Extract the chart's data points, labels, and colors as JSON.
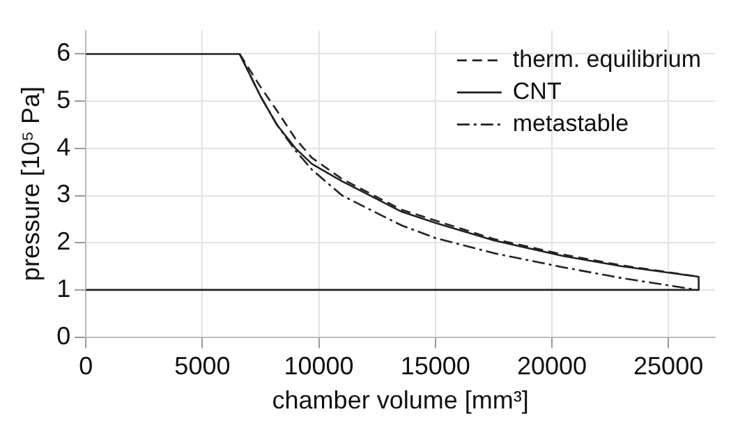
{
  "chart_data": {
    "type": "line",
    "xlabel": "chamber volume [mm³]",
    "ylabel": "pressure [10⁵ Pa]",
    "xlim": [
      0,
      27000
    ],
    "xticks": [
      0,
      5000,
      10000,
      15000,
      20000,
      25000
    ],
    "ylim": [
      0,
      6.5
    ],
    "yticks": [
      0,
      1,
      2,
      3,
      4,
      5,
      6
    ],
    "grid": true,
    "legend": "top right",
    "marker": "none",
    "series": [
      {
        "name": "therm. equilibrium",
        "color": "#222222",
        "line_style": "dashed",
        "x": [
          6600,
          7500,
          8200,
          9000,
          9700,
          11000,
          13540,
          17500,
          20480,
          23000,
          26300
        ],
        "values": [
          6,
          5.3,
          4.8,
          4.2,
          3.8,
          3.35,
          2.7,
          2.08,
          1.75,
          1.52,
          1.28
        ]
      },
      {
        "name": "CNT",
        "color": "#222222",
        "line_style": "solid",
        "x": [
          0,
          6600,
          7500,
          8200,
          9000,
          9700,
          11000,
          12000,
          13540,
          15000,
          17500,
          20480,
          23000,
          26300,
          26300,
          0
        ],
        "values": [
          6,
          6,
          5.1,
          4.5,
          4.0,
          3.67,
          3.3,
          3.05,
          2.66,
          2.42,
          2.05,
          1.72,
          1.5,
          1.28,
          1,
          1
        ]
      },
      {
        "name": "metastable",
        "color": "#222222",
        "line_style": "dashdot",
        "x": [
          6600,
          7500,
          8200,
          9000,
          9700,
          11000,
          12000,
          13540,
          15000,
          17500,
          20480,
          23000,
          26000
        ],
        "values": [
          6,
          5.1,
          4.5,
          3.95,
          3.55,
          3.0,
          2.75,
          2.37,
          2.1,
          1.78,
          1.48,
          1.25,
          1.02
        ]
      }
    ]
  }
}
